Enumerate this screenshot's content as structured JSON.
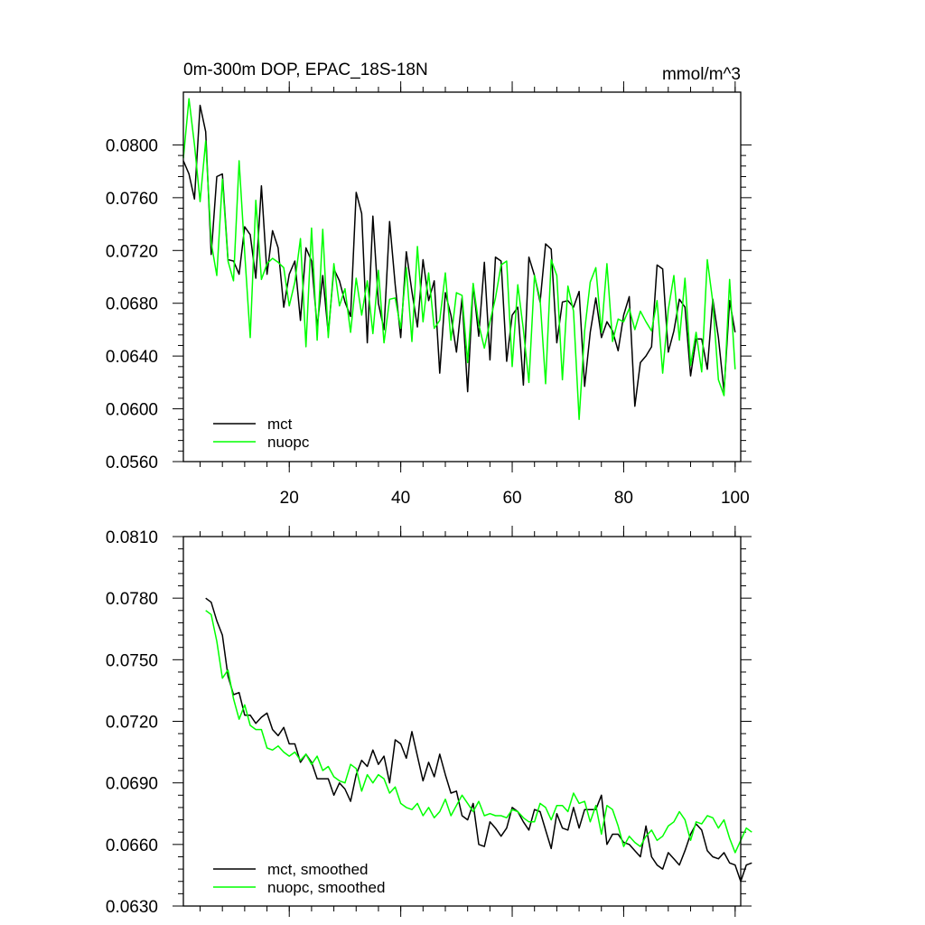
{
  "chart_data": [
    {
      "type": "line",
      "title": "0m-300m DOP, EPAC_18S-18N",
      "units": "mmol/m^3",
      "xlim": [
        1,
        101
      ],
      "ylim": [
        0.056,
        0.084
      ],
      "xticks": [
        20,
        40,
        60,
        80,
        100
      ],
      "xtick_labels": [
        "20",
        "40",
        "60",
        "80",
        "100"
      ],
      "yticks": [
        0.056,
        0.06,
        0.064,
        0.068,
        0.072,
        0.076,
        0.08
      ],
      "ytick_labels": [
        "0.0560",
        "0.0600",
        "0.0640",
        "0.0680",
        "0.0720",
        "0.0760",
        "0.0800"
      ],
      "legend_position": "bottom-left",
      "x_start": 1,
      "series": [
        {
          "name": "mct",
          "color": "#000000",
          "values": [
            0.0788,
            0.0778,
            0.0759,
            0.083,
            0.081,
            0.0717,
            0.0776,
            0.0778,
            0.0713,
            0.0712,
            0.0702,
            0.0738,
            0.0732,
            0.0699,
            0.0769,
            0.0702,
            0.0735,
            0.0722,
            0.0677,
            0.0702,
            0.0712,
            0.0667,
            0.0722,
            0.0712,
            0.0662,
            0.0701,
            0.0657,
            0.0706,
            0.0697,
            0.0681,
            0.067,
            0.0764,
            0.0748,
            0.065,
            0.0746,
            0.068,
            0.066,
            0.0742,
            0.0694,
            0.0654,
            0.0719,
            0.0689,
            0.0662,
            0.0713,
            0.0682,
            0.0697,
            0.0627,
            0.0688,
            0.0671,
            0.0643,
            0.0684,
            0.0613,
            0.0694,
            0.0655,
            0.0711,
            0.0637,
            0.0715,
            0.0712,
            0.0636,
            0.0671,
            0.0677,
            0.0618,
            0.0715,
            0.0701,
            0.0681,
            0.0725,
            0.0721,
            0.065,
            0.0681,
            0.0682,
            0.0677,
            0.0689,
            0.0617,
            0.0658,
            0.0684,
            0.0654,
            0.0666,
            0.0659,
            0.0644,
            0.0671,
            0.0685,
            0.0602,
            0.0635,
            0.064,
            0.0647,
            0.0709,
            0.0706,
            0.0643,
            0.0659,
            0.0683,
            0.0677,
            0.0625,
            0.0653,
            0.0653,
            0.063,
            0.0683,
            0.0654,
            0.0613,
            0.0682,
            0.0658
          ]
        },
        {
          "name": "nuopc",
          "color": "#00ff00",
          "values": [
            0.079,
            0.0835,
            0.08,
            0.0757,
            0.0803,
            0.0726,
            0.0701,
            0.0774,
            0.0712,
            0.0697,
            0.0788,
            0.0718,
            0.0654,
            0.0758,
            0.0698,
            0.071,
            0.0714,
            0.0711,
            0.0707,
            0.0678,
            0.0696,
            0.0729,
            0.0647,
            0.0737,
            0.0652,
            0.0736,
            0.0654,
            0.071,
            0.0678,
            0.0691,
            0.0658,
            0.0699,
            0.0671,
            0.0697,
            0.0657,
            0.0705,
            0.065,
            0.0683,
            0.0684,
            0.0661,
            0.0707,
            0.0651,
            0.0723,
            0.0666,
            0.0703,
            0.0661,
            0.0667,
            0.0703,
            0.0652,
            0.0688,
            0.0686,
            0.0635,
            0.0695,
            0.0664,
            0.0646,
            0.0666,
            0.0684,
            0.0709,
            0.0712,
            0.0632,
            0.0694,
            0.066,
            0.062,
            0.0701,
            0.0683,
            0.0619,
            0.0713,
            0.0701,
            0.0622,
            0.0693,
            0.0674,
            0.0592,
            0.0659,
            0.0696,
            0.0707,
            0.0658,
            0.071,
            0.0651,
            0.0668,
            0.0666,
            0.0676,
            0.066,
            0.0674,
            0.0666,
            0.0659,
            0.0682,
            0.0627,
            0.0675,
            0.0701,
            0.0652,
            0.0699,
            0.0633,
            0.0658,
            0.0628,
            0.0713,
            0.0681,
            0.0622,
            0.061,
            0.0698,
            0.063
          ]
        }
      ]
    },
    {
      "type": "line",
      "title": "",
      "xlim": [
        1,
        101
      ],
      "ylim": [
        0.063,
        0.081
      ],
      "xticks": [
        20,
        40,
        60,
        80,
        100
      ],
      "xtick_labels": [
        "",
        "",
        "",
        "",
        ""
      ],
      "yticks": [
        0.063,
        0.066,
        0.069,
        0.072,
        0.075,
        0.078,
        0.081
      ],
      "ytick_labels": [
        "0.0630",
        "0.0660",
        "0.0690",
        "0.0720",
        "0.0750",
        "0.0780",
        "0.0810"
      ],
      "legend_position": "bottom-left",
      "x_start": 5,
      "series": [
        {
          "name": "mct, smoothed",
          "color": "#000000",
          "values": [
            0.078,
            0.0778,
            0.0769,
            0.0762,
            0.0742,
            0.0733,
            0.0734,
            0.0723,
            0.0723,
            0.0719,
            0.0722,
            0.0724,
            0.0716,
            0.0713,
            0.0717,
            0.0709,
            0.0709,
            0.07,
            0.0704,
            0.07,
            0.0692,
            0.0692,
            0.0692,
            0.0684,
            0.069,
            0.0687,
            0.0681,
            0.0694,
            0.0701,
            0.0698,
            0.0706,
            0.0699,
            0.0703,
            0.069,
            0.0711,
            0.0709,
            0.0702,
            0.0715,
            0.0703,
            0.0691,
            0.07,
            0.0693,
            0.0704,
            0.0694,
            0.0685,
            0.0686,
            0.0674,
            0.0672,
            0.068,
            0.066,
            0.0659,
            0.0671,
            0.0668,
            0.0664,
            0.0668,
            0.0678,
            0.0676,
            0.0671,
            0.0667,
            0.0677,
            0.0676,
            0.0667,
            0.0658,
            0.0675,
            0.0668,
            0.0667,
            0.0678,
            0.0668,
            0.0677,
            0.0677,
            0.0677,
            0.0684,
            0.066,
            0.0665,
            0.0665,
            0.0661,
            0.066,
            0.0657,
            0.0654,
            0.0669,
            0.0654,
            0.065,
            0.0648,
            0.0656,
            0.0653,
            0.065,
            0.0657,
            0.0665,
            0.067,
            0.0667,
            0.0657,
            0.0654,
            0.0653,
            0.0656,
            0.0651,
            0.065,
            0.0642,
            0.065,
            0.0651
          ]
        },
        {
          "name": "nuopc, smoothed",
          "color": "#00ff00",
          "values": [
            0.0774,
            0.0772,
            0.0759,
            0.0741,
            0.0745,
            0.0731,
            0.0721,
            0.0728,
            0.0718,
            0.0716,
            0.0716,
            0.0707,
            0.0706,
            0.0708,
            0.0705,
            0.0703,
            0.0705,
            0.0701,
            0.0704,
            0.0699,
            0.0703,
            0.0696,
            0.0698,
            0.0693,
            0.0691,
            0.069,
            0.0699,
            0.0697,
            0.0686,
            0.0694,
            0.069,
            0.0694,
            0.0692,
            0.0685,
            0.0688,
            0.068,
            0.0678,
            0.0677,
            0.068,
            0.0674,
            0.0678,
            0.0673,
            0.0676,
            0.0682,
            0.0674,
            0.0679,
            0.0684,
            0.068,
            0.0676,
            0.0681,
            0.0674,
            0.0675,
            0.0674,
            0.0674,
            0.0673,
            0.0677,
            0.0676,
            0.0673,
            0.0671,
            0.0671,
            0.068,
            0.0678,
            0.0672,
            0.0679,
            0.0679,
            0.0676,
            0.0685,
            0.068,
            0.0681,
            0.0671,
            0.0679,
            0.0665,
            0.0679,
            0.0677,
            0.0669,
            0.0659,
            0.0664,
            0.0661,
            0.0659,
            0.0664,
            0.0667,
            0.0662,
            0.0664,
            0.0669,
            0.0671,
            0.0676,
            0.0672,
            0.0662,
            0.0671,
            0.067,
            0.0674,
            0.0673,
            0.0668,
            0.0672,
            0.0663,
            0.0656,
            0.0662,
            0.0668,
            0.0666
          ]
        }
      ]
    }
  ]
}
